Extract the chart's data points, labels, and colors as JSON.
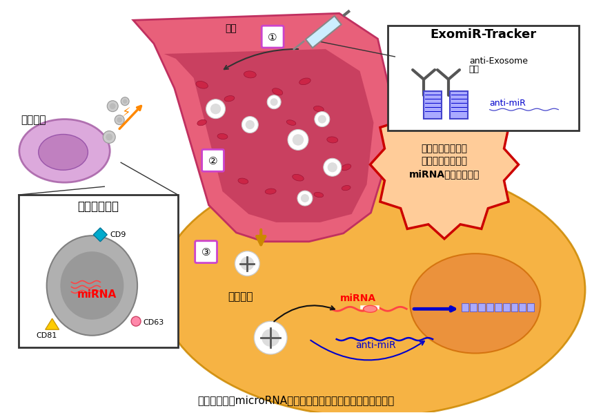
{
  "title": "図１　体液中microRNAを標的とした新しい薬物送達システム",
  "bg_color": "#ffffff",
  "labels": {
    "cancer_cell": "がん細胞",
    "exosome_title": "エクソソーム",
    "miRNA_label": "miRNA",
    "CD9": "CD9",
    "CD81": "CD81",
    "CD63": "CD63",
    "tracker_title": "ExomiR-Tracker",
    "anti_exosome": "anti-Exosome",
    "antibody": "抗体",
    "anti_miR_blue": "anti-miR",
    "blood_vessel_label": "血管",
    "recipient_cell": "受容細胞",
    "miRNA_red": "miRNA",
    "anti_miR_bottom": "anti-miR",
    "starburst_line1": "受容細胞において",
    "starburst_line2": "エクソソーム由来",
    "starburst_line3": "miRNAの機能を阻害"
  }
}
